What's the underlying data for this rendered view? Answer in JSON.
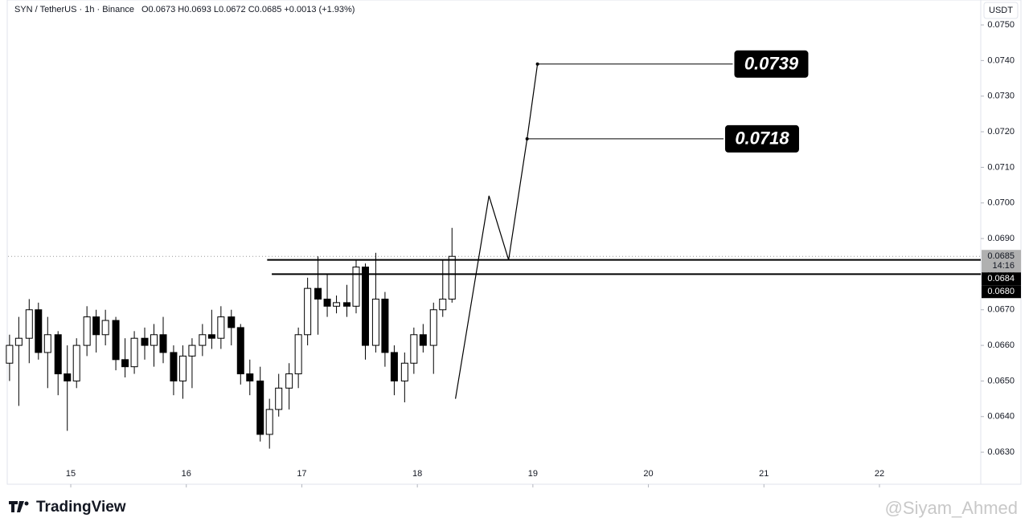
{
  "chart_data": {
    "type": "candlestick",
    "header": {
      "symbol": "SYN / TetherUS · 1h · Binance",
      "ohlc": "O0.0673 H0.0693 L0.0672 C0.0685 +0.0013 (+1.93%)"
    },
    "currency": "USDT",
    "x": [
      14.47,
      14.55,
      14.64,
      14.72,
      14.8,
      14.89,
      14.97,
      15.05,
      15.14,
      15.22,
      15.3,
      15.39,
      15.47,
      15.55,
      15.64,
      15.72,
      15.8,
      15.89,
      15.97,
      16.05,
      16.14,
      16.22,
      16.3,
      16.39,
      16.47,
      16.55,
      16.64,
      16.72,
      16.8,
      16.89,
      16.97,
      17.05,
      17.14,
      17.22,
      17.3,
      17.39,
      17.47,
      17.55,
      17.64,
      17.72,
      17.8,
      17.89,
      17.97,
      18.05,
      18.14,
      18.22,
      18.3
    ],
    "open": [
      0.0655,
      0.066,
      0.0662,
      0.067,
      0.0658,
      0.0663,
      0.0652,
      0.065,
      0.066,
      0.0668,
      0.0663,
      0.0667,
      0.0656,
      0.0654,
      0.0662,
      0.066,
      0.0663,
      0.0658,
      0.065,
      0.0657,
      0.066,
      0.0663,
      0.0662,
      0.0668,
      0.0665,
      0.0652,
      0.065,
      0.0635,
      0.0642,
      0.0648,
      0.0652,
      0.0663,
      0.0676,
      0.0673,
      0.0671,
      0.0672,
      0.0671,
      0.0682,
      0.066,
      0.0673,
      0.0658,
      0.065,
      0.0655,
      0.0663,
      0.066,
      0.067,
      0.0673
    ],
    "high": [
      0.0663,
      0.0668,
      0.0673,
      0.0672,
      0.0668,
      0.0664,
      0.066,
      0.0662,
      0.0671,
      0.067,
      0.067,
      0.0668,
      0.0662,
      0.0664,
      0.0665,
      0.0666,
      0.0668,
      0.066,
      0.066,
      0.0662,
      0.0666,
      0.067,
      0.0671,
      0.067,
      0.0666,
      0.0656,
      0.0654,
      0.0645,
      0.0652,
      0.0655,
      0.0665,
      0.0679,
      0.0685,
      0.068,
      0.0674,
      0.0677,
      0.0684,
      0.0683,
      0.0686,
      0.0675,
      0.066,
      0.0658,
      0.0665,
      0.0666,
      0.0672,
      0.0684,
      0.0693
    ],
    "low": [
      0.065,
      0.0643,
      0.0655,
      0.0656,
      0.0648,
      0.0646,
      0.0636,
      0.0648,
      0.0657,
      0.0658,
      0.066,
      0.0653,
      0.0651,
      0.0652,
      0.0656,
      0.0654,
      0.0655,
      0.0646,
      0.0645,
      0.0648,
      0.0657,
      0.0659,
      0.0659,
      0.066,
      0.0649,
      0.0646,
      0.0633,
      0.0631,
      0.064,
      0.0642,
      0.0648,
      0.066,
      0.0663,
      0.0668,
      0.0669,
      0.0668,
      0.0669,
      0.0656,
      0.0658,
      0.0654,
      0.0646,
      0.0644,
      0.0652,
      0.0658,
      0.0652,
      0.0668,
      0.0672
    ],
    "close": [
      0.066,
      0.0662,
      0.067,
      0.0658,
      0.0663,
      0.0652,
      0.065,
      0.066,
      0.0668,
      0.0663,
      0.0667,
      0.0656,
      0.0654,
      0.0662,
      0.066,
      0.0663,
      0.0658,
      0.065,
      0.0657,
      0.066,
      0.0663,
      0.0662,
      0.0668,
      0.0665,
      0.0652,
      0.065,
      0.0635,
      0.0642,
      0.0648,
      0.0652,
      0.0663,
      0.0676,
      0.0673,
      0.0671,
      0.0672,
      0.0671,
      0.0682,
      0.066,
      0.0673,
      0.0658,
      0.065,
      0.0655,
      0.0663,
      0.066,
      0.067,
      0.0673,
      0.0685
    ],
    "up_color": "#ffffff",
    "down_color": "#000000",
    "xlim": [
      14.457,
      22.877
    ],
    "xticks": [
      15,
      16,
      17,
      18,
      19,
      20,
      21,
      22
    ],
    "ylim": [
      0.0621,
      0.0757
    ],
    "yticks": [
      {
        "value": 0.063,
        "label": "0.0630"
      },
      {
        "value": 0.064,
        "label": "0.0640"
      },
      {
        "value": 0.065,
        "label": "0.0650"
      },
      {
        "value": 0.066,
        "label": "0.0660"
      },
      {
        "value": 0.067,
        "label": "0.0670"
      },
      {
        "value": 0.068,
        "label": "0.0680"
      },
      {
        "value": 0.069,
        "label": "0.0690"
      },
      {
        "value": 0.07,
        "label": "0.0700"
      },
      {
        "value": 0.071,
        "label": "0.0710"
      },
      {
        "value": 0.072,
        "label": "0.0720"
      },
      {
        "value": 0.073,
        "label": "0.0730"
      },
      {
        "value": 0.074,
        "label": "0.0740"
      },
      {
        "value": 0.075,
        "label": "0.0750"
      }
    ],
    "last_price": {
      "value": 0.0685,
      "label": "0.0685",
      "countdown": "14:16"
    },
    "levels": [
      {
        "value": 0.0684,
        "label": "0.0684",
        "x": 16.7
      },
      {
        "value": 0.068,
        "label": "0.0680",
        "x": 16.74
      }
    ],
    "projection": {
      "x": [
        18.33,
        18.62,
        18.79,
        18.95,
        19.04
      ],
      "y": [
        0.0645,
        0.0702,
        0.0684,
        0.0718,
        0.0739
      ]
    },
    "targets": [
      {
        "value": 0.0739,
        "label": "0.0739",
        "x": [
          19.04,
          20.73
        ]
      },
      {
        "value": 0.0718,
        "label": "0.0718",
        "x": [
          18.95,
          20.65
        ]
      }
    ],
    "brand": "TradingView",
    "watermark": "@Siyam_Ahmed"
  }
}
